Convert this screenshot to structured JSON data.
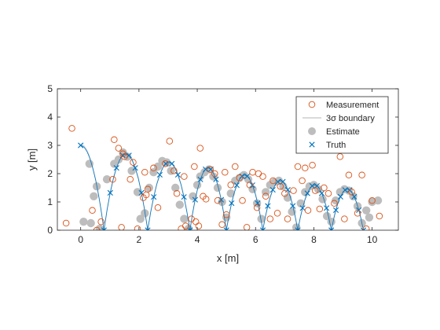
{
  "chart_data": {
    "type": "scatter",
    "xlabel": "x [m]",
    "ylabel": "y [m]",
    "xlim": [
      -0.8,
      10.9
    ],
    "ylim": [
      0,
      5
    ],
    "xticks": [
      0,
      2,
      4,
      6,
      8,
      10
    ],
    "yticks": [
      0,
      1,
      2,
      3,
      4,
      5
    ],
    "xtick_labels": [
      "0",
      "2",
      "4",
      "6",
      "8",
      "10"
    ],
    "ytick_labels": [
      "0",
      "1",
      "2",
      "3",
      "4",
      "5"
    ],
    "grid": false,
    "legend": {
      "placement": "top-right",
      "entries": [
        {
          "label": "Measurement",
          "marker": "open-circle",
          "color": "#D95319"
        },
        {
          "label": "3σ boundary",
          "marker": "line",
          "color": "#b4b4b4"
        },
        {
          "label": "Estimate",
          "marker": "filled-circle",
          "color": "#bdbdbd"
        },
        {
          "label": "Truth",
          "marker": "x",
          "color": "#0072BD"
        }
      ]
    },
    "truth_model": {
      "start": [
        0,
        3.0
      ],
      "first_bounce_x": 0.8,
      "bounce_apexes": [
        [
          1.55,
          2.7
        ],
        [
          3.05,
          2.4
        ],
        [
          4.35,
          2.2
        ],
        [
          5.55,
          1.95
        ],
        [
          6.8,
          1.75
        ],
        [
          7.95,
          1.6
        ],
        [
          9.15,
          1.45
        ]
      ],
      "bounce_landings": [
        0.8,
        2.3,
        3.75,
        5.0,
        6.25,
        7.45,
        8.6,
        9.7
      ],
      "end": [
        10.0,
        0.45
      ]
    },
    "series": [
      {
        "name": "Measurement",
        "color": "#D95319",
        "x": [
          -0.5,
          -0.3,
          0.4,
          0.55,
          0.7,
          1.1,
          1.15,
          1.3,
          1.4,
          1.45,
          1.5,
          1.7,
          1.8,
          1.95,
          2.15,
          2.2,
          2.25,
          2.3,
          2.5,
          2.65,
          2.9,
          3.05,
          3.2,
          3.3,
          3.45,
          3.55,
          3.6,
          3.8,
          3.9,
          3.95,
          4.05,
          4.1,
          4.2,
          4.3,
          4.45,
          4.6,
          4.7,
          4.85,
          4.95,
          5.0,
          5.15,
          5.3,
          5.45,
          5.55,
          5.7,
          5.8,
          5.9,
          6.05,
          6.1,
          6.25,
          6.35,
          6.5,
          6.6,
          6.75,
          6.85,
          7.0,
          7.1,
          7.3,
          7.45,
          7.6,
          7.7,
          7.8,
          7.95,
          8.05,
          8.2,
          8.35,
          8.5,
          8.7,
          8.9,
          9.05,
          9.2,
          9.3,
          9.5,
          9.65,
          9.8,
          10.0,
          10.25
        ],
        "y": [
          0.25,
          3.6,
          0.7,
          0.0,
          0.3,
          1.8,
          3.2,
          2.9,
          0.1,
          2.7,
          2.6,
          1.8,
          2.4,
          0.05,
          1.15,
          2.05,
          1.25,
          1.45,
          2.2,
          0.8,
          2.35,
          3.15,
          2.1,
          1.3,
          0.05,
          1.9,
          0.15,
          0.4,
          2.25,
          0.3,
          0.15,
          2.9,
          1.2,
          1.1,
          2.15,
          2.0,
          1.05,
          0.2,
          2.05,
          0.55,
          1.6,
          2.25,
          1.85,
          1.05,
          0.1,
          1.6,
          2.05,
          0.8,
          2.0,
          1.9,
          1.2,
          0.4,
          1.75,
          0.6,
          1.55,
          1.3,
          0.4,
          1.4,
          2.25,
          1.75,
          2.2,
          0.7,
          2.3,
          1.4,
          0.75,
          1.5,
          1.3,
          0.95,
          2.6,
          0.4,
          1.95,
          1.35,
          0.6,
          1.95,
          0.05,
          1.05,
          0.5
        ]
      },
      {
        "name": "Estimate",
        "color": "#bdbdbd",
        "x": [
          0.1,
          0.3,
          0.35,
          0.45,
          0.55,
          0.65,
          0.9,
          1.15,
          1.3,
          1.45,
          1.6,
          1.75,
          1.95,
          2.05,
          2.2,
          2.35,
          2.5,
          2.65,
          2.8,
          2.95,
          3.1,
          3.25,
          3.4,
          3.55,
          3.7,
          3.85,
          4.0,
          4.1,
          4.25,
          4.4,
          4.55,
          4.7,
          4.85,
          5.0,
          5.15,
          5.3,
          5.45,
          5.6,
          5.75,
          5.9,
          6.05,
          6.2,
          6.35,
          6.5,
          6.65,
          6.8,
          6.95,
          7.1,
          7.25,
          7.4,
          7.55,
          7.7,
          7.85,
          8.0,
          8.15,
          8.3,
          8.45,
          8.6,
          8.75,
          8.9,
          9.05,
          9.2,
          9.35,
          9.5,
          9.65,
          9.8,
          9.9,
          10.0,
          10.2
        ],
        "y": [
          0.3,
          2.35,
          0.25,
          1.2,
          1.55,
          0.05,
          1.8,
          2.35,
          2.5,
          2.75,
          2.6,
          2.1,
          1.35,
          0.4,
          0.6,
          1.5,
          2.05,
          2.25,
          2.45,
          2.4,
          2.1,
          1.5,
          0.9,
          0.4,
          0.05,
          1.2,
          1.6,
          1.9,
          2.05,
          2.15,
          1.9,
          1.5,
          1.0,
          0.45,
          1.3,
          1.75,
          1.85,
          1.95,
          1.8,
          1.45,
          0.95,
          0.4,
          1.35,
          1.6,
          1.7,
          1.75,
          1.55,
          1.15,
          0.65,
          0.1,
          0.95,
          1.35,
          1.55,
          1.6,
          1.45,
          1.1,
          0.5,
          0.3,
          1.05,
          1.35,
          1.45,
          1.4,
          1.2,
          0.85,
          0.25,
          0.7,
          0.45,
          1.0,
          1.05
        ]
      }
    ]
  }
}
